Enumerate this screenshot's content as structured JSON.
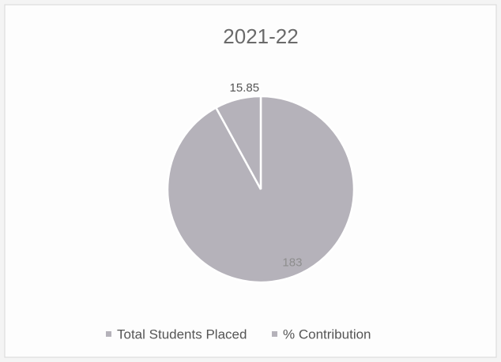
{
  "chart_data": {
    "type": "pie",
    "title": "2021-22",
    "categories": [
      "Total Students Placed",
      "% Contribution"
    ],
    "values": [
      183,
      15.85
    ],
    "colors": [
      "#b5b2ba",
      "#b5b2ba"
    ],
    "legend": "bottom"
  }
}
